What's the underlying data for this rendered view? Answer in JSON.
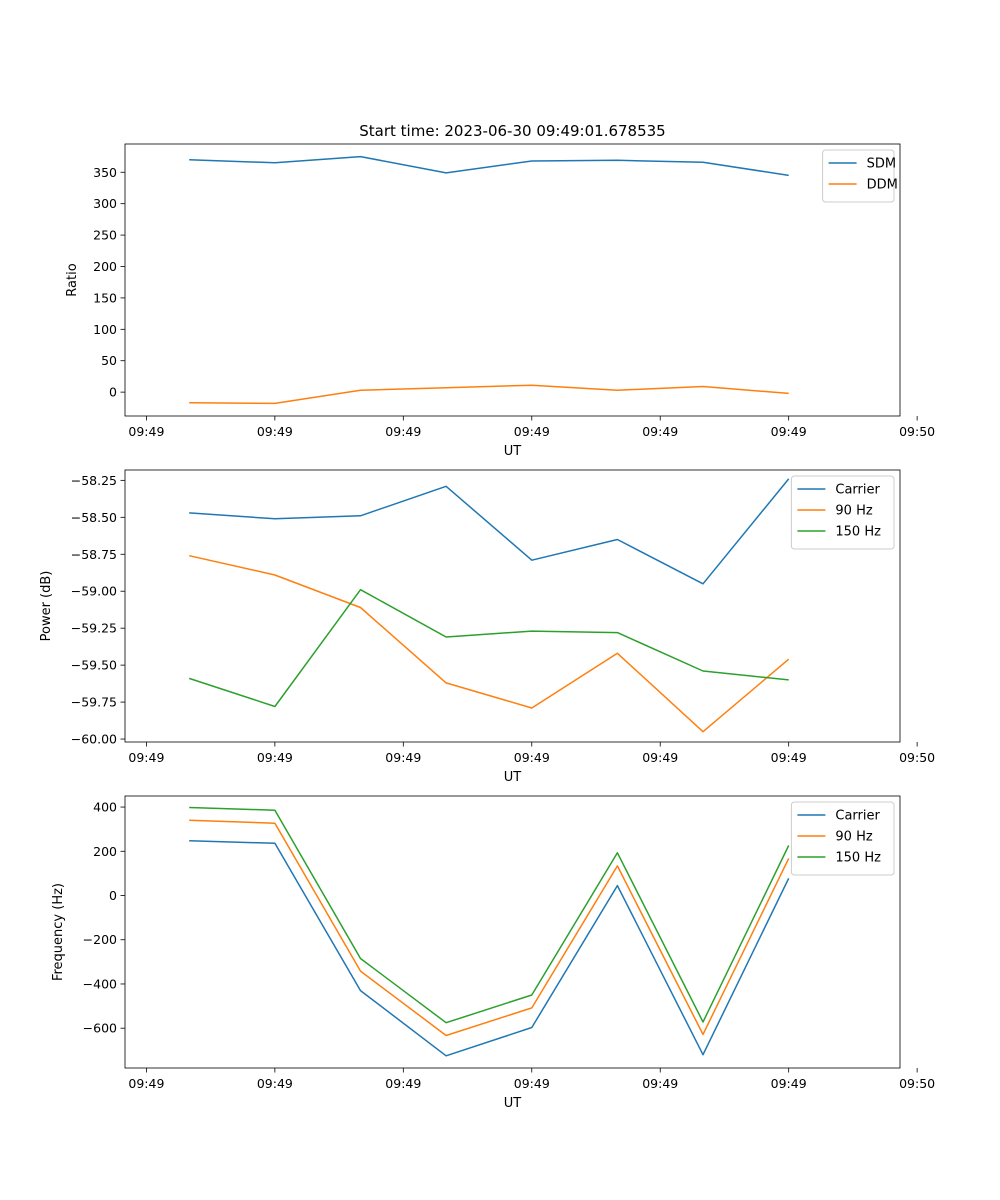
{
  "figure": {
    "title": "Start time: 2023-06-30 09:49:01.678535"
  },
  "chart_data": [
    {
      "type": "line",
      "title": "Start time: 2023-06-30 09:49:01.678535",
      "xlabel": "UT",
      "ylabel": "Ratio",
      "x": [
        1,
        2,
        3,
        4,
        5,
        6,
        7,
        8
      ],
      "xlim": [
        0.25,
        9.3
      ],
      "x_ticks": [
        0.5,
        2,
        3.5,
        5,
        6.5,
        8,
        9.5
      ],
      "x_tick_labels": [
        "09:49",
        "09:49",
        "09:49",
        "09:49",
        "09:49",
        "09:49",
        "09:50"
      ],
      "ylim": [
        -38,
        395
      ],
      "y_ticks": [
        0,
        50,
        100,
        150,
        200,
        250,
        300,
        350
      ],
      "y_tick_labels": [
        "0",
        "50",
        "100",
        "150",
        "200",
        "250",
        "300",
        "350"
      ],
      "legend": "top-right",
      "grid": false,
      "series": [
        {
          "name": "SDM",
          "color": "#1f77b4",
          "values": [
            370,
            365,
            375,
            349,
            368,
            369,
            366,
            345
          ]
        },
        {
          "name": "DDM",
          "color": "#ff7f0e",
          "values": [
            -17,
            -18,
            3,
            7,
            11,
            3,
            9,
            -2
          ]
        }
      ]
    },
    {
      "type": "line",
      "title": "",
      "xlabel": "UT",
      "ylabel": "Power (dB)",
      "x": [
        1,
        2,
        3,
        4,
        5,
        6,
        7,
        8
      ],
      "xlim": [
        0.25,
        9.3
      ],
      "x_ticks": [
        0.5,
        2,
        3.5,
        5,
        6.5,
        8,
        9.5
      ],
      "x_tick_labels": [
        "09:49",
        "09:49",
        "09:49",
        "09:49",
        "09:49",
        "09:49",
        "09:50"
      ],
      "ylim": [
        -60.02,
        -58.18
      ],
      "y_ticks": [
        -60.0,
        -59.75,
        -59.5,
        -59.25,
        -59.0,
        -58.75,
        -58.5,
        -58.25
      ],
      "y_tick_labels": [
        "−60.00",
        "−59.75",
        "−59.50",
        "−59.25",
        "−59.00",
        "−58.75",
        "−58.50",
        "−58.25"
      ],
      "legend": "top-right",
      "grid": false,
      "series": [
        {
          "name": "Carrier",
          "color": "#1f77b4",
          "values": [
            -58.47,
            -58.51,
            -58.49,
            -58.29,
            -58.79,
            -58.65,
            -58.95,
            -58.24
          ]
        },
        {
          "name": "90 Hz",
          "color": "#ff7f0e",
          "values": [
            -58.76,
            -58.89,
            -59.11,
            -59.62,
            -59.79,
            -59.42,
            -59.95,
            -59.46
          ]
        },
        {
          "name": "150 Hz",
          "color": "#2ca02c",
          "values": [
            -59.59,
            -59.78,
            -58.99,
            -59.31,
            -59.27,
            -59.28,
            -59.54,
            -59.6
          ]
        }
      ]
    },
    {
      "type": "line",
      "title": "",
      "xlabel": "UT",
      "ylabel": "Frequency (Hz)",
      "x": [
        1,
        2,
        3,
        4,
        5,
        6,
        7,
        8
      ],
      "xlim": [
        0.25,
        9.3
      ],
      "x_ticks": [
        0.5,
        2,
        3.5,
        5,
        6.5,
        8,
        9.5
      ],
      "x_tick_labels": [
        "09:49",
        "09:49",
        "09:49",
        "09:49",
        "09:49",
        "09:49",
        "09:50"
      ],
      "ylim": [
        -780,
        450
      ],
      "y_ticks": [
        -600,
        -400,
        -200,
        0,
        200,
        400
      ],
      "y_tick_labels": [
        "−600",
        "−400",
        "−200",
        "0",
        "200",
        "400"
      ],
      "legend": "top-right",
      "grid": false,
      "series": [
        {
          "name": "Carrier",
          "color": "#1f77b4",
          "values": [
            248,
            236,
            -430,
            -725,
            -597,
            45,
            -720,
            78
          ]
        },
        {
          "name": "90 Hz",
          "color": "#ff7f0e",
          "values": [
            340,
            327,
            -342,
            -633,
            -508,
            134,
            -628,
            168
          ]
        },
        {
          "name": "150 Hz",
          "color": "#2ca02c",
          "values": [
            398,
            386,
            -285,
            -575,
            -450,
            193,
            -572,
            226
          ]
        }
      ]
    }
  ]
}
